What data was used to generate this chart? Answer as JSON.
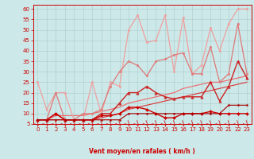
{
  "title": "",
  "xlabel": "Vent moyen/en rafales ( km/h )",
  "xlim": [
    -0.5,
    23.5
  ],
  "ylim": [
    5,
    62
  ],
  "yticks": [
    5,
    10,
    15,
    20,
    25,
    30,
    35,
    40,
    45,
    50,
    55,
    60
  ],
  "xticks": [
    0,
    1,
    2,
    3,
    4,
    5,
    6,
    7,
    8,
    9,
    10,
    11,
    12,
    13,
    14,
    15,
    16,
    17,
    18,
    19,
    20,
    21,
    22,
    23
  ],
  "bg_color": "#cce8e8",
  "grid_color": "#aacccc",
  "series": [
    {
      "x": [
        0,
        1,
        2,
        3,
        4,
        5,
        6,
        7,
        8,
        9,
        10,
        11,
        12,
        13,
        14,
        15,
        16,
        17,
        18,
        19,
        20,
        21,
        22,
        23
      ],
      "y": [
        25,
        12,
        20,
        20,
        7,
        7,
        25,
        10,
        25,
        23,
        50,
        57,
        44,
        45,
        57,
        30,
        56,
        29,
        33,
        51,
        40,
        53,
        60,
        60
      ],
      "color": "#f0a0a0",
      "lw": 0.9,
      "marker": "o",
      "ms": 1.8
    },
    {
      "x": [
        0,
        1,
        2,
        3,
        4,
        5,
        6,
        7,
        8,
        9,
        10,
        11,
        12,
        13,
        14,
        15,
        16,
        17,
        18,
        19,
        20,
        21,
        22,
        23
      ],
      "y": [
        7,
        7,
        20,
        7,
        7,
        10,
        10,
        12,
        23,
        30,
        35,
        33,
        28,
        35,
        36,
        38,
        39,
        29,
        29,
        42,
        25,
        29,
        53,
        29
      ],
      "color": "#e07878",
      "lw": 0.9,
      "marker": "o",
      "ms": 1.8
    },
    {
      "x": [
        0,
        1,
        2,
        3,
        4,
        5,
        6,
        7,
        8,
        9,
        10,
        11,
        12,
        13,
        14,
        15,
        16,
        17,
        18,
        19,
        20,
        21,
        22,
        23
      ],
      "y": [
        7,
        7,
        10,
        7,
        7,
        7,
        7,
        10,
        10,
        15,
        20,
        20,
        23,
        20,
        18,
        17,
        18,
        18,
        18,
        25,
        16,
        23,
        35,
        27
      ],
      "color": "#cc2222",
      "lw": 1.0,
      "marker": "^",
      "ms": 2.5
    },
    {
      "x": [
        0,
        1,
        2,
        3,
        4,
        5,
        6,
        7,
        8,
        9,
        10,
        11,
        12,
        13,
        14,
        15,
        16,
        17,
        18,
        19,
        20,
        21,
        22,
        23
      ],
      "y": [
        7,
        7,
        10,
        7,
        7,
        7,
        7,
        9,
        9,
        10,
        13,
        13,
        12,
        10,
        8,
        8,
        10,
        10,
        10,
        11,
        10,
        10,
        10,
        10
      ],
      "color": "#cc0000",
      "lw": 1.0,
      "marker": "D",
      "ms": 2.0
    },
    {
      "x": [
        0,
        1,
        2,
        3,
        4,
        5,
        6,
        7,
        8,
        9,
        10,
        11,
        12,
        13,
        14,
        15,
        16,
        17,
        18,
        19,
        20,
        21,
        22,
        23
      ],
      "y": [
        7,
        7,
        7,
        7,
        7,
        7,
        7,
        7,
        7,
        7,
        10,
        10,
        10,
        10,
        10,
        10,
        10,
        10,
        10,
        10,
        10,
        14,
        14,
        14
      ],
      "color": "#aa0000",
      "lw": 0.8,
      "marker": "o",
      "ms": 1.5
    },
    {
      "x": [
        0,
        1,
        2,
        3,
        4,
        5,
        6,
        7,
        8,
        9,
        10,
        11,
        12,
        13,
        14,
        15,
        16,
        17,
        18,
        19,
        20,
        21,
        22,
        23
      ],
      "y": [
        7,
        7,
        7,
        7,
        7,
        7,
        7,
        8,
        9,
        10,
        12,
        13,
        14,
        15,
        16,
        17,
        18,
        19,
        20,
        21,
        22,
        23,
        24,
        25
      ],
      "color": "#dd3333",
      "lw": 0.8,
      "marker": null,
      "ms": 0
    },
    {
      "x": [
        0,
        1,
        2,
        3,
        4,
        5,
        6,
        7,
        8,
        9,
        10,
        11,
        12,
        13,
        14,
        15,
        16,
        17,
        18,
        19,
        20,
        21,
        22,
        23
      ],
      "y": [
        7,
        7,
        9,
        9,
        9,
        9,
        10,
        11,
        12,
        13,
        15,
        16,
        17,
        18,
        19,
        20,
        22,
        23,
        24,
        25,
        25,
        26,
        27,
        28
      ],
      "color": "#ee6666",
      "lw": 0.8,
      "marker": null,
      "ms": 0
    }
  ],
  "arrow_color": "#cc2222",
  "tick_color": "#cc0000",
  "xlabel_color": "#cc0000",
  "xlabel_fontsize": 5.5,
  "tick_fontsize": 5.0
}
